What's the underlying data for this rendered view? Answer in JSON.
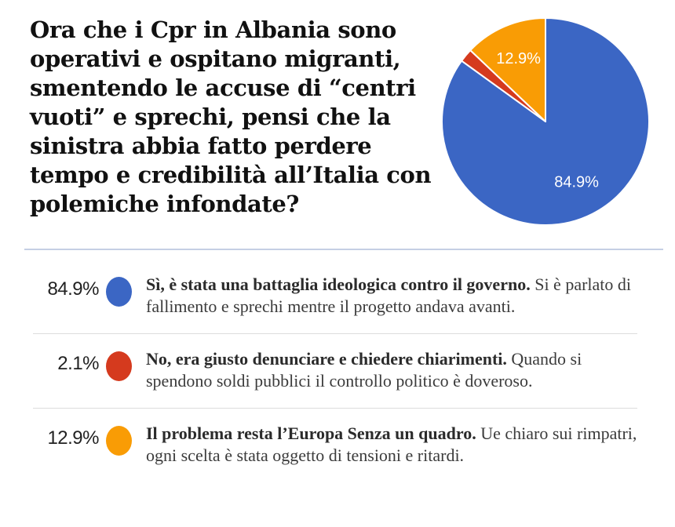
{
  "question": "Ora che i Cpr in Albania sono operativi e ospitano migranti, smentendo le accuse di “centri vuoti” e sprechi, pensi che la sinistra abbia fatto perdere tempo e credibilità all’Italia con polemiche infondate?",
  "chart_data": {
    "type": "pie",
    "title": "",
    "labels": [
      "Sì, è stata una battaglia ideologica contro il governo.",
      "No, era giusto denunciare e chiedere chiarimenti.",
      "Il problema resta l’Europa Senza un quadro."
    ],
    "values": [
      84.9,
      2.1,
      12.9
    ],
    "value_labels": [
      "84.9%",
      "2.1%",
      "12.9%"
    ],
    "colors": [
      "#3b66c4",
      "#d53a1e",
      "#f99c05"
    ],
    "start_angle_deg": 0,
    "direction": "clockwise",
    "slice_border_color": "#ffffff",
    "label_color": "#ffffff",
    "label_font_size": 20,
    "min_label_pct": 5,
    "legend_position": "bottom"
  },
  "answers": [
    {
      "percent": "84.9%",
      "color": "#3b66c4",
      "bold": "Sì, è stata una battaglia ideologica contro il governo.",
      "rest": "Si è parlato di fallimento e sprechi mentre il progetto andava avanti."
    },
    {
      "percent": "2.1%",
      "color": "#d53a1e",
      "bold": "No, era giusto denunciare e chiedere chiarimenti.",
      "rest": "Quando si spendono soldi pubblici il controllo politico è doveroso."
    },
    {
      "percent": "12.9%",
      "color": "#f99c05",
      "bold": "Il problema resta l’Europa Senza un quadro.",
      "rest": "Ue chiaro sui rimpatri, ogni scelta è stata oggetto di tensioni e ritardi."
    }
  ]
}
